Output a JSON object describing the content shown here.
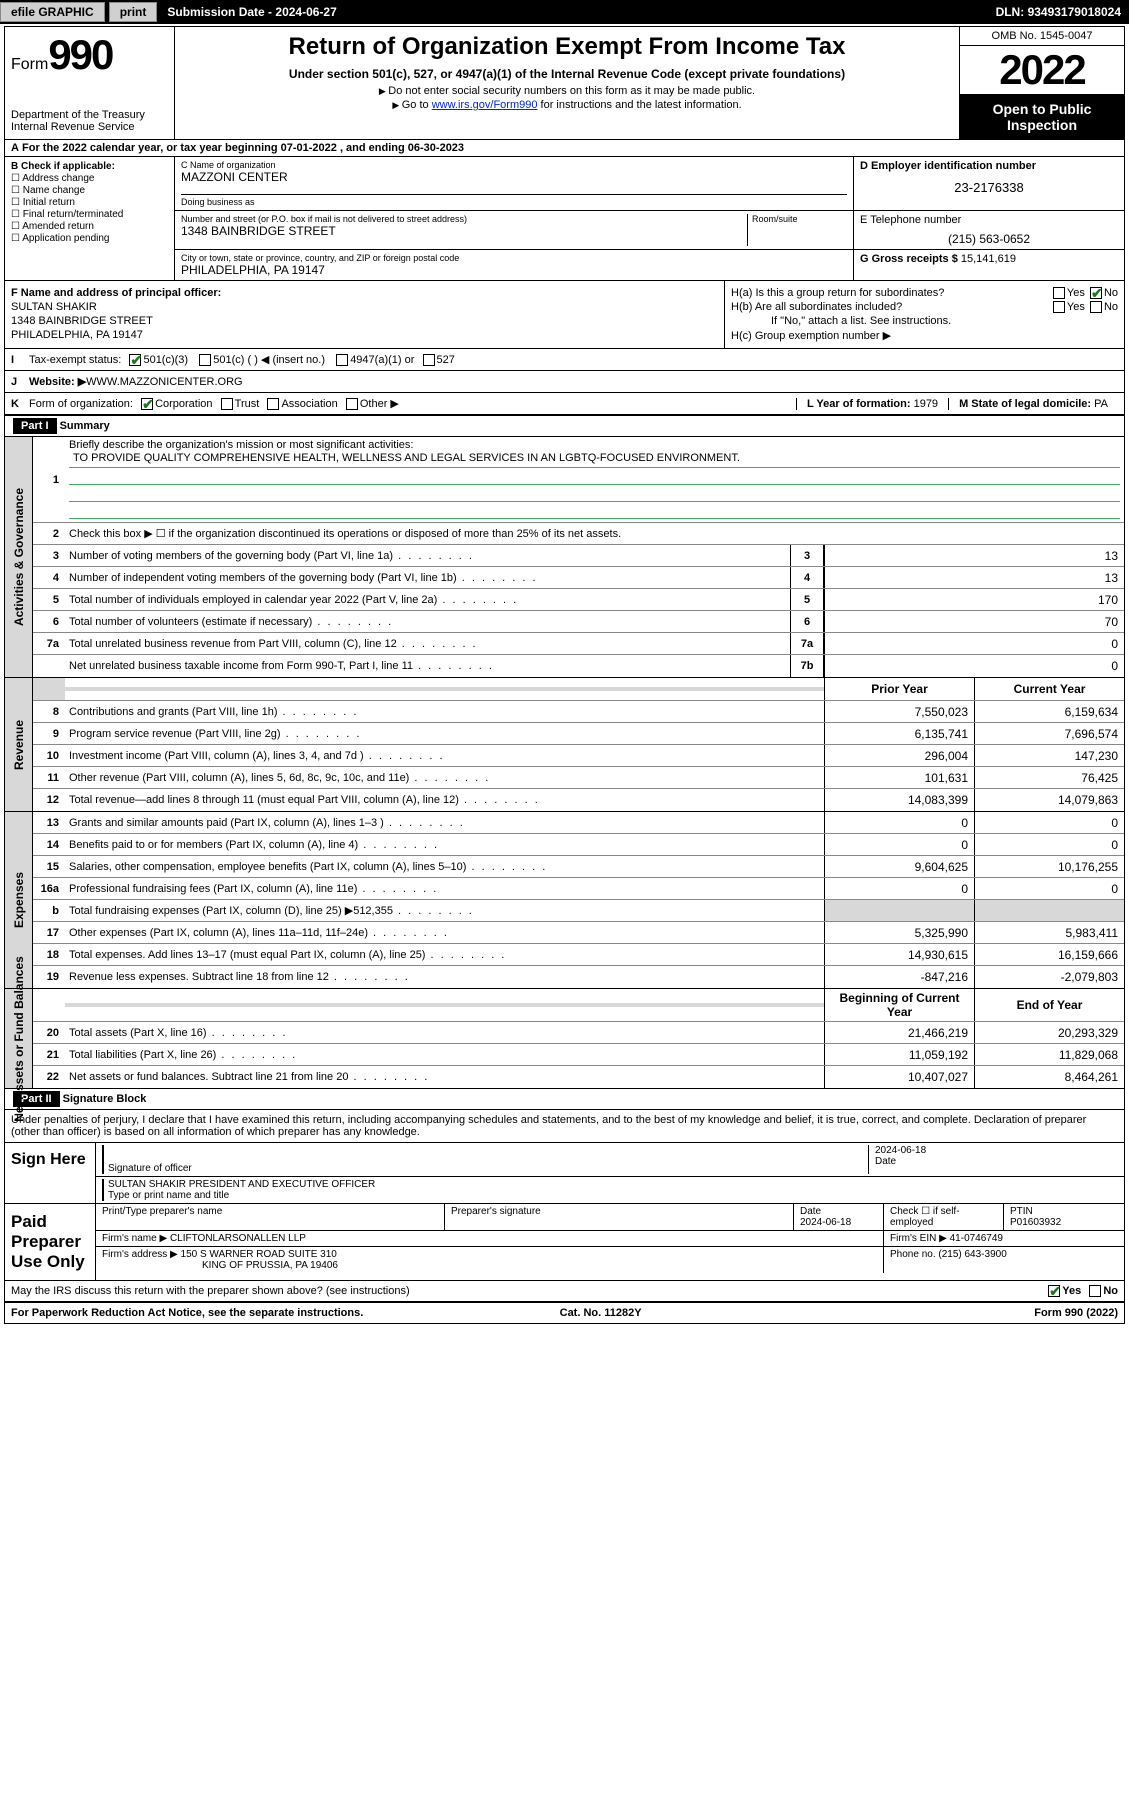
{
  "topbar": {
    "efile": "efile GRAPHIC",
    "print": "print",
    "subdate_lbl": "Submission Date - ",
    "subdate": "2024-06-27",
    "dln_lbl": "DLN: ",
    "dln": "93493179018024"
  },
  "header": {
    "form_word": "Form",
    "form_num": "990",
    "dept": "Department of the Treasury\nInternal Revenue Service",
    "title": "Return of Organization Exempt From Income Tax",
    "sub": "Under section 501(c), 527, or 4947(a)(1) of the Internal Revenue Code (except private foundations)",
    "note1": "Do not enter social security numbers on this form as it may be made public.",
    "note2_pre": "Go to ",
    "note2_link": "www.irs.gov/Form990",
    "note2_post": " for instructions and the latest information.",
    "omb": "OMB No. 1545-0047",
    "year": "2022",
    "open": "Open to Public Inspection"
  },
  "rowA": "For the 2022 calendar year, or tax year beginning 07-01-2022   , and ending 06-30-2023",
  "secB": {
    "label": "B Check if applicable:",
    "items": [
      "Address change",
      "Name change",
      "Initial return",
      "Final return/terminated",
      "Amended return",
      "Application pending"
    ],
    "c_lbl": "C Name of organization",
    "c_val": "MAZZONI CENTER",
    "dba_lbl": "Doing business as",
    "dba_val": "",
    "addr_lbl": "Number and street (or P.O. box if mail is not delivered to street address)",
    "room_lbl": "Room/suite",
    "addr_val": "1348 BAINBRIDGE STREET",
    "city_lbl": "City or town, state or province, country, and ZIP or foreign postal code",
    "city_val": "PHILADELPHIA, PA  19147",
    "d_lbl": "D Employer identification number",
    "d_val": "23-2176338",
    "e_lbl": "E Telephone number",
    "e_val": "(215) 563-0652",
    "g_lbl": "G Gross receipts $ ",
    "g_val": "15,141,619"
  },
  "secF": {
    "f_lbl": "F Name and address of principal officer:",
    "f_name": "SULTAN SHAKIR",
    "f_addr1": "1348 BAINBRIDGE STREET",
    "f_addr2": "PHILADELPHIA, PA  19147",
    "ha": "H(a)  Is this a group return for subordinates?",
    "hb": "H(b)  Are all subordinates included?",
    "hb_note": "If \"No,\" attach a list. See instructions.",
    "hc": "H(c)  Group exemption number ▶",
    "yes": "Yes",
    "no": "No"
  },
  "rowI": {
    "lead": "I",
    "lbl": "Tax-exempt status:",
    "o1": "501(c)(3)",
    "o2": "501(c) (  ) ◀ (insert no.)",
    "o3": "4947(a)(1) or",
    "o4": "527"
  },
  "rowJ": {
    "lead": "J",
    "lbl": "Website: ▶ ",
    "val": "WWW.MAZZONICENTER.ORG"
  },
  "rowK": {
    "lead": "K",
    "lbl": "Form of organization:",
    "opts": [
      "Corporation",
      "Trust",
      "Association",
      "Other ▶"
    ],
    "L_lbl": "L Year of formation: ",
    "L_val": "1979",
    "M_lbl": "M State of legal domicile: ",
    "M_val": "PA"
  },
  "part1": {
    "hdr": "Part I",
    "title": "Summary",
    "q1_lbl": "Briefly describe the organization's mission or most significant activities:",
    "q1_val": "TO PROVIDE QUALITY COMPREHENSIVE HEALTH, WELLNESS AND LEGAL SERVICES IN AN LGBTQ-FOCUSED ENVIRONMENT.",
    "q2": "Check this box ▶ ☐  if the organization discontinued its operations or disposed of more than 25% of its net assets.",
    "rows_gov": [
      {
        "n": "3",
        "t": "Number of voting members of the governing body (Part VI, line 1a)",
        "b": "3",
        "v": "13"
      },
      {
        "n": "4",
        "t": "Number of independent voting members of the governing body (Part VI, line 1b)",
        "b": "4",
        "v": "13"
      },
      {
        "n": "5",
        "t": "Total number of individuals employed in calendar year 2022 (Part V, line 2a)",
        "b": "5",
        "v": "170"
      },
      {
        "n": "6",
        "t": "Total number of volunteers (estimate if necessary)",
        "b": "6",
        "v": "70"
      },
      {
        "n": "7a",
        "t": "Total unrelated business revenue from Part VIII, column (C), line 12",
        "b": "7a",
        "v": "0"
      },
      {
        "n": "",
        "t": "Net unrelated business taxable income from Form 990-T, Part I, line 11",
        "b": "7b",
        "v": "0"
      }
    ],
    "col_prior": "Prior Year",
    "col_curr": "Current Year",
    "rows_rev": [
      {
        "n": "8",
        "t": "Contributions and grants (Part VIII, line 1h)",
        "p": "7,550,023",
        "c": "6,159,634"
      },
      {
        "n": "9",
        "t": "Program service revenue (Part VIII, line 2g)",
        "p": "6,135,741",
        "c": "7,696,574"
      },
      {
        "n": "10",
        "t": "Investment income (Part VIII, column (A), lines 3, 4, and 7d )",
        "p": "296,004",
        "c": "147,230"
      },
      {
        "n": "11",
        "t": "Other revenue (Part VIII, column (A), lines 5, 6d, 8c, 9c, 10c, and 11e)",
        "p": "101,631",
        "c": "76,425"
      },
      {
        "n": "12",
        "t": "Total revenue—add lines 8 through 11 (must equal Part VIII, column (A), line 12)",
        "p": "14,083,399",
        "c": "14,079,863"
      }
    ],
    "rows_exp": [
      {
        "n": "13",
        "t": "Grants and similar amounts paid (Part IX, column (A), lines 1–3 )",
        "p": "0",
        "c": "0"
      },
      {
        "n": "14",
        "t": "Benefits paid to or for members (Part IX, column (A), line 4)",
        "p": "0",
        "c": "0"
      },
      {
        "n": "15",
        "t": "Salaries, other compensation, employee benefits (Part IX, column (A), lines 5–10)",
        "p": "9,604,625",
        "c": "10,176,255"
      },
      {
        "n": "16a",
        "t": "Professional fundraising fees (Part IX, column (A), line 11e)",
        "p": "0",
        "c": "0"
      },
      {
        "n": "b",
        "t": "Total fundraising expenses (Part IX, column (D), line 25) ▶512,355",
        "p": "",
        "c": "",
        "shade": true
      },
      {
        "n": "17",
        "t": "Other expenses (Part IX, column (A), lines 11a–11d, 11f–24e)",
        "p": "5,325,990",
        "c": "5,983,411"
      },
      {
        "n": "18",
        "t": "Total expenses. Add lines 13–17 (must equal Part IX, column (A), line 25)",
        "p": "14,930,615",
        "c": "16,159,666"
      },
      {
        "n": "19",
        "t": "Revenue less expenses. Subtract line 18 from line 12",
        "p": "-847,216",
        "c": "-2,079,803"
      }
    ],
    "col_beg": "Beginning of Current Year",
    "col_end": "End of Year",
    "rows_net": [
      {
        "n": "20",
        "t": "Total assets (Part X, line 16)",
        "p": "21,466,219",
        "c": "20,293,329"
      },
      {
        "n": "21",
        "t": "Total liabilities (Part X, line 26)",
        "p": "11,059,192",
        "c": "11,829,068"
      },
      {
        "n": "22",
        "t": "Net assets or fund balances. Subtract line 21 from line 20",
        "p": "10,407,027",
        "c": "8,464,261"
      }
    ],
    "vtabs": {
      "gov": "Activities & Governance",
      "rev": "Revenue",
      "exp": "Expenses",
      "net": "Net Assets or Fund Balances"
    }
  },
  "part2": {
    "hdr": "Part II",
    "title": "Signature Block",
    "decl": "Under penalties of perjury, I declare that I have examined this return, including accompanying schedules and statements, and to the best of my knowledge and belief, it is true, correct, and complete. Declaration of preparer (other than officer) is based on all information of which preparer has any knowledge.",
    "sign": "Sign Here",
    "sig_off": "Signature of officer",
    "date": "Date",
    "sig_date": "2024-06-18",
    "name_title": "SULTAN SHAKIR  PRESIDENT AND EXECUTIVE OFFICER",
    "name_lbl": "Type or print name and title",
    "paid": "Paid Preparer Use Only",
    "prep_name_lbl": "Print/Type preparer's name",
    "prep_sig_lbl": "Preparer's signature",
    "prep_date": "2024-06-18",
    "check_lbl": "Check ☐ if self-employed",
    "ptin_lbl": "PTIN",
    "ptin": "P01603932",
    "firm_name_lbl": "Firm's name    ▶",
    "firm_name": "CLIFTONLARSONALLEN LLP",
    "firm_ein_lbl": "Firm's EIN ▶",
    "firm_ein": "41-0746749",
    "firm_addr_lbl": "Firm's address ▶",
    "firm_addr1": "150 S WARNER ROAD SUITE 310",
    "firm_addr2": "KING OF PRUSSIA, PA  19406",
    "phone_lbl": "Phone no. ",
    "phone": "(215) 643-3900",
    "may": "May the IRS discuss this return with the preparer shown above? (see instructions)"
  },
  "footer": {
    "pra": "For Paperwork Reduction Act Notice, see the separate instructions.",
    "cat": "Cat. No. 11282Y",
    "form": "Form 990 (2022)"
  }
}
